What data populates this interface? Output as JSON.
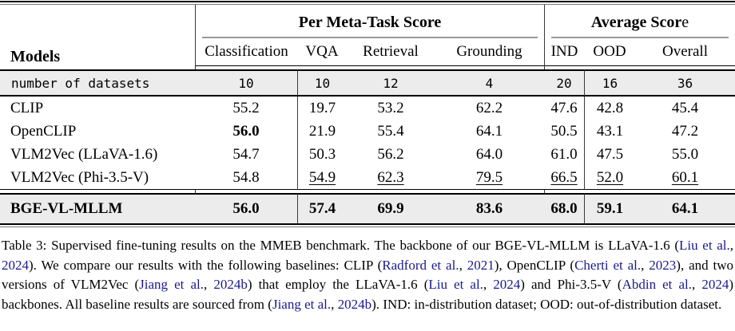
{
  "table": {
    "models_header": "Models",
    "group_headers": {
      "meta_task": "Per Meta-Task Score",
      "average_bold": "Average Scor",
      "average_tail": "e"
    },
    "columns": [
      "Classification",
      "VQA",
      "Retrieval",
      "Grounding",
      "IND",
      "OOD",
      "Overall"
    ],
    "datasets_row": {
      "label": "number of datasets",
      "values": [
        "10",
        "10",
        "12",
        "4",
        "20",
        "16",
        "36"
      ]
    },
    "rows": [
      {
        "model": "CLIP",
        "values": [
          {
            "v": "55.2"
          },
          {
            "v": "19.7"
          },
          {
            "v": "53.2"
          },
          {
            "v": "62.2"
          },
          {
            "v": "47.6"
          },
          {
            "v": "42.8"
          },
          {
            "v": "45.4"
          }
        ]
      },
      {
        "model": "OpenCLIP",
        "values": [
          {
            "v": "56.0",
            "b": true
          },
          {
            "v": "21.9"
          },
          {
            "v": "55.4"
          },
          {
            "v": "64.1"
          },
          {
            "v": "50.5"
          },
          {
            "v": "43.1"
          },
          {
            "v": "47.2"
          }
        ]
      },
      {
        "model": "VLM2Vec (LLaVA-1.6)",
        "values": [
          {
            "v": "54.7"
          },
          {
            "v": "50.3"
          },
          {
            "v": "56.2"
          },
          {
            "v": "64.0"
          },
          {
            "v": "61.0"
          },
          {
            "v": "47.5"
          },
          {
            "v": "55.0"
          }
        ]
      },
      {
        "model": "VLM2Vec (Phi-3.5-V)",
        "values": [
          {
            "v": "54.8"
          },
          {
            "v": "54.9",
            "u": true
          },
          {
            "v": "62.3",
            "u": true
          },
          {
            "v": "79.5",
            "u": true
          },
          {
            "v": "66.5",
            "u": true
          },
          {
            "v": "52.0",
            "u": true
          },
          {
            "v": "60.1",
            "u": true
          }
        ]
      }
    ],
    "highlight_row": {
      "model": "BGE-VL-MLLM",
      "values": [
        {
          "v": "56.0",
          "b": true
        },
        {
          "v": "57.4",
          "b": true
        },
        {
          "v": "69.9",
          "b": true
        },
        {
          "v": "83.6",
          "b": true
        },
        {
          "v": "68.0",
          "b": true
        },
        {
          "v": "59.1",
          "b": true
        },
        {
          "v": "64.1",
          "b": true
        }
      ]
    }
  },
  "caption": {
    "segments": [
      {
        "t": "Table 3:  Supervised fine-tuning results on the MMEB benchmark.  The backbone of our BGE-VL-MLLM is LLaVA-1.6 (",
        "cite": false
      },
      {
        "t": "Liu et al.",
        "cite": true
      },
      {
        "t": ", ",
        "cite": false
      },
      {
        "t": "2024",
        "cite": true
      },
      {
        "t": "). We compare our results with the following baselines: CLIP (",
        "cite": false
      },
      {
        "t": "Radford et al.",
        "cite": true
      },
      {
        "t": ", ",
        "cite": false
      },
      {
        "t": "2021",
        "cite": true
      },
      {
        "t": "), OpenCLIP (",
        "cite": false
      },
      {
        "t": "Cherti et al.",
        "cite": true
      },
      {
        "t": ", ",
        "cite": false
      },
      {
        "t": "2023",
        "cite": true
      },
      {
        "t": "), and two versions of VLM2Vec (",
        "cite": false
      },
      {
        "t": "Jiang et al.",
        "cite": true
      },
      {
        "t": ", ",
        "cite": false
      },
      {
        "t": "2024b",
        "cite": true
      },
      {
        "t": ") that employ the LLaVA-1.6 (",
        "cite": false
      },
      {
        "t": "Liu et al.",
        "cite": true
      },
      {
        "t": ", ",
        "cite": false
      },
      {
        "t": "2024",
        "cite": true
      },
      {
        "t": ") and Phi-3.5-V (",
        "cite": false
      },
      {
        "t": "Abdin et al.",
        "cite": true
      },
      {
        "t": ", ",
        "cite": false
      },
      {
        "t": "2024",
        "cite": true
      },
      {
        "t": ") backbones.  All baseline results are sourced from (",
        "cite": false
      },
      {
        "t": "Jiang et al.",
        "cite": true
      },
      {
        "t": ", ",
        "cite": false
      },
      {
        "t": "2024b",
        "cite": true
      },
      {
        "t": "). IND: in-distribution dataset; OOD: out-of-distribution dataset.",
        "cite": false
      }
    ]
  },
  "colors": {
    "band": "#ececec",
    "citation": "#1a1a8c",
    "cmidrule": "#999999",
    "rule_light": "#777777"
  }
}
